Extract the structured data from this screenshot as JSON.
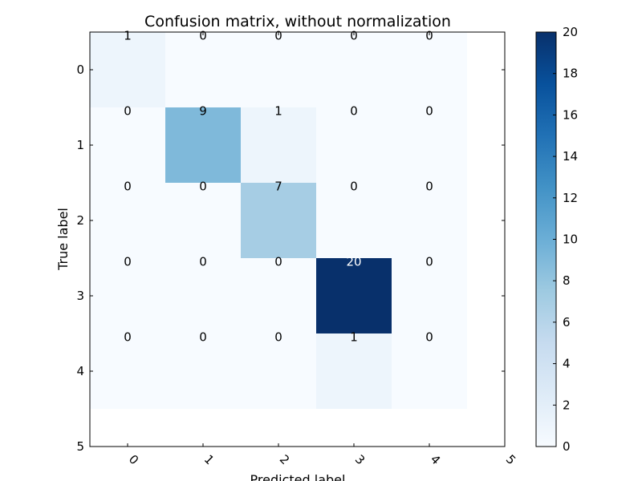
{
  "chart_data": {
    "type": "heatmap",
    "title": "Confusion matrix, without normalization",
    "xlabel": "Predicted label",
    "ylabel": "True label",
    "x_ticks": [
      "0",
      "1",
      "2",
      "3",
      "4",
      "5"
    ],
    "y_ticks": [
      "0",
      "1",
      "2",
      "3",
      "4",
      "5"
    ],
    "x_range": [
      -0.5,
      5.0
    ],
    "y_range": [
      -0.5,
      5.0
    ],
    "rows": [
      [
        1,
        0,
        0,
        0,
        0
      ],
      [
        0,
        9,
        1,
        0,
        0
      ],
      [
        0,
        0,
        7,
        0,
        0
      ],
      [
        0,
        0,
        0,
        20,
        0
      ],
      [
        0,
        0,
        0,
        1,
        0
      ]
    ],
    "colormap": "Blues",
    "colorbar": {
      "min": 0,
      "max": 20,
      "ticks": [
        "0",
        "2",
        "4",
        "6",
        "8",
        "10",
        "12",
        "14",
        "16",
        "18",
        "20"
      ]
    },
    "text_color_light": "#ffffff",
    "text_color_dark": "#000000",
    "grid": false
  }
}
